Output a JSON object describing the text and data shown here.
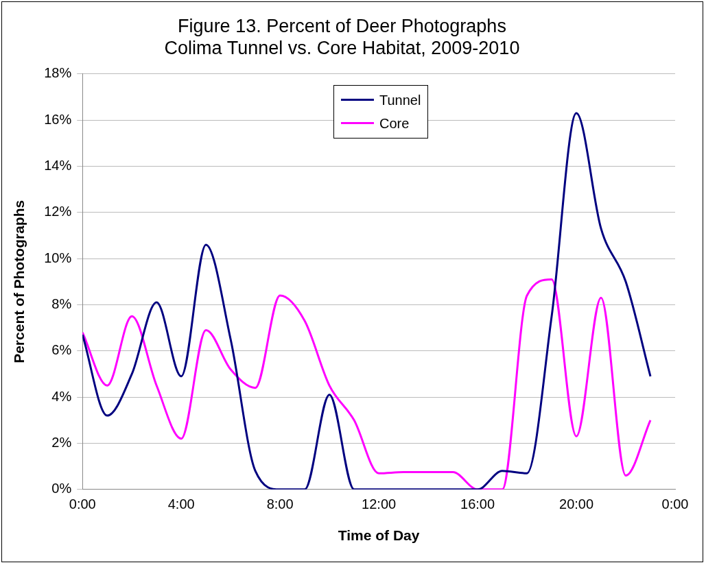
{
  "chart_data": {
    "type": "line",
    "title": "Figure 13. Percent of Deer Photographs\nColima Tunnel vs. Core Habitat, 2009-2010",
    "xlabel": "Time of Day",
    "ylabel": "Percent of Photographs",
    "x": [
      0,
      1,
      2,
      3,
      4,
      5,
      6,
      7,
      8,
      9,
      10,
      11,
      12,
      13,
      14,
      15,
      16,
      17,
      18,
      19,
      20,
      21,
      22,
      23
    ],
    "series": [
      {
        "name": "Tunnel",
        "color": "#000080",
        "values": [
          6.7,
          3.2,
          5.0,
          8.1,
          4.9,
          10.6,
          6.5,
          0.8,
          0,
          0,
          4.1,
          0,
          0,
          0,
          0,
          0,
          0,
          0.8,
          0.7,
          7.5,
          16.3,
          11.3,
          9.0,
          4.9
        ]
      },
      {
        "name": "Core",
        "color": "#ff00ff",
        "values": [
          6.8,
          4.5,
          7.5,
          4.5,
          2.2,
          6.9,
          5.2,
          4.4,
          8.4,
          7.3,
          4.5,
          3.0,
          0.7,
          0.75,
          0.75,
          0.75,
          0,
          0,
          8.4,
          9.1,
          2.3,
          8.3,
          0.6,
          3.0
        ]
      }
    ],
    "xlim": [
      0,
      24
    ],
    "xticks": [
      {
        "value": 0,
        "label": "0:00"
      },
      {
        "value": 4,
        "label": "4:00"
      },
      {
        "value": 8,
        "label": "8:00"
      },
      {
        "value": 12,
        "label": "12:00"
      },
      {
        "value": 16,
        "label": "16:00"
      },
      {
        "value": 20,
        "label": "20:00"
      },
      {
        "value": 24,
        "label": "0:00"
      }
    ],
    "ylim": [
      0,
      18
    ],
    "yticks": [
      {
        "value": 0,
        "label": "0%"
      },
      {
        "value": 2,
        "label": "2%"
      },
      {
        "value": 4,
        "label": "4%"
      },
      {
        "value": 6,
        "label": "6%"
      },
      {
        "value": 8,
        "label": "8%"
      },
      {
        "value": 10,
        "label": "10%"
      },
      {
        "value": 12,
        "label": "12%"
      },
      {
        "value": 14,
        "label": "14%"
      },
      {
        "value": 16,
        "label": "16%"
      },
      {
        "value": 18,
        "label": "18%"
      }
    ],
    "grid": "y",
    "legend": "top right",
    "marker": "none",
    "line_style": "solid"
  }
}
